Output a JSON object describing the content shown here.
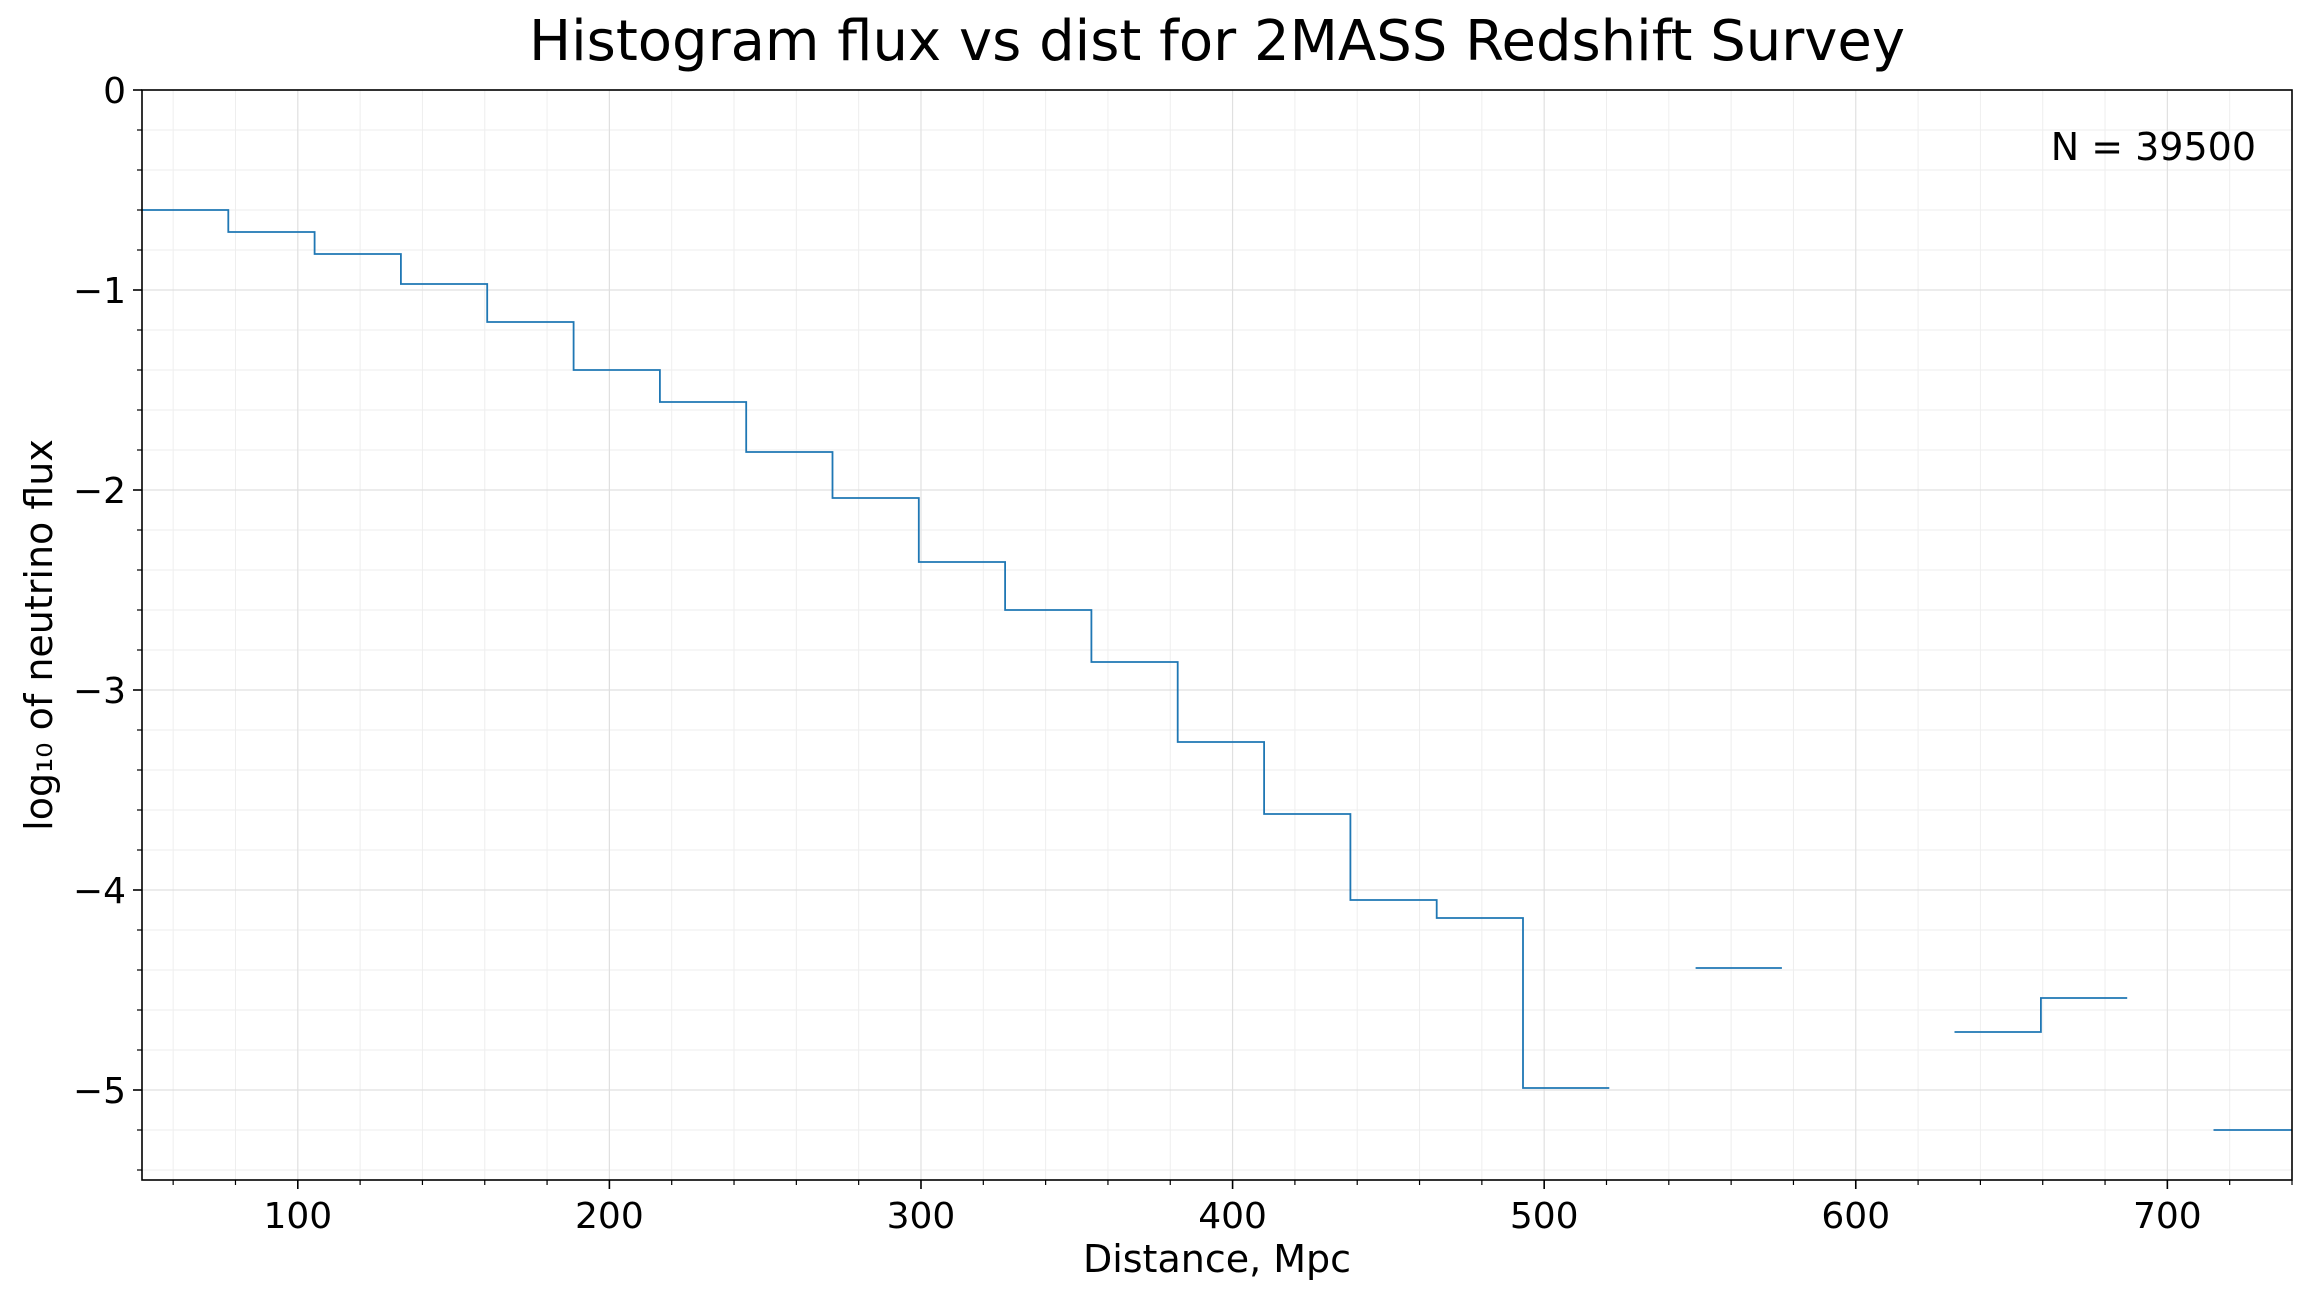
{
  "chart_data": {
    "type": "line",
    "drawstyle": "steps-post",
    "title": "Histogram flux vs dist for 2MASS Redshift Survey",
    "xlabel": "Distance, Mpc",
    "ylabel": "log₁₀ of neutrino flux",
    "annotation": "N = 39500",
    "annotation_position": "top-right",
    "xlim": [
      50,
      740
    ],
    "ylim": [
      -5.45,
      0
    ],
    "xticks": [
      100,
      200,
      300,
      400,
      500,
      600,
      700
    ],
    "yticks": [
      0,
      -1,
      -2,
      -3,
      -4,
      -5
    ],
    "xtick_labels": [
      "100",
      "200",
      "300",
      "400",
      "500",
      "600",
      "700"
    ],
    "ytick_labels": [
      "0",
      "−1",
      "−2",
      "−3",
      "−4",
      "−5"
    ],
    "grid": true,
    "minor_grid": true,
    "legend": false,
    "series": [
      {
        "color": "#1f77b4",
        "bin_edges": [
          50,
          77.7,
          105.4,
          133.1,
          160.8,
          188.5,
          216.2,
          243.9,
          271.6,
          299.3,
          327.0,
          354.7,
          382.4,
          410.1,
          437.8,
          465.5,
          493.2,
          520.9,
          548.6,
          576.3,
          604.0,
          631.7,
          659.4,
          687.1,
          714.8,
          742.5
        ],
        "values": [
          -0.6,
          -0.71,
          -0.82,
          -0.97,
          -1.16,
          -1.4,
          -1.56,
          -1.81,
          -2.04,
          -2.36,
          -2.6,
          -2.86,
          -3.26,
          -3.62,
          -4.05,
          -4.14,
          -4.99,
          null,
          -4.39,
          null,
          null,
          -4.71,
          -4.54,
          null,
          -5.2
        ]
      }
    ]
  }
}
